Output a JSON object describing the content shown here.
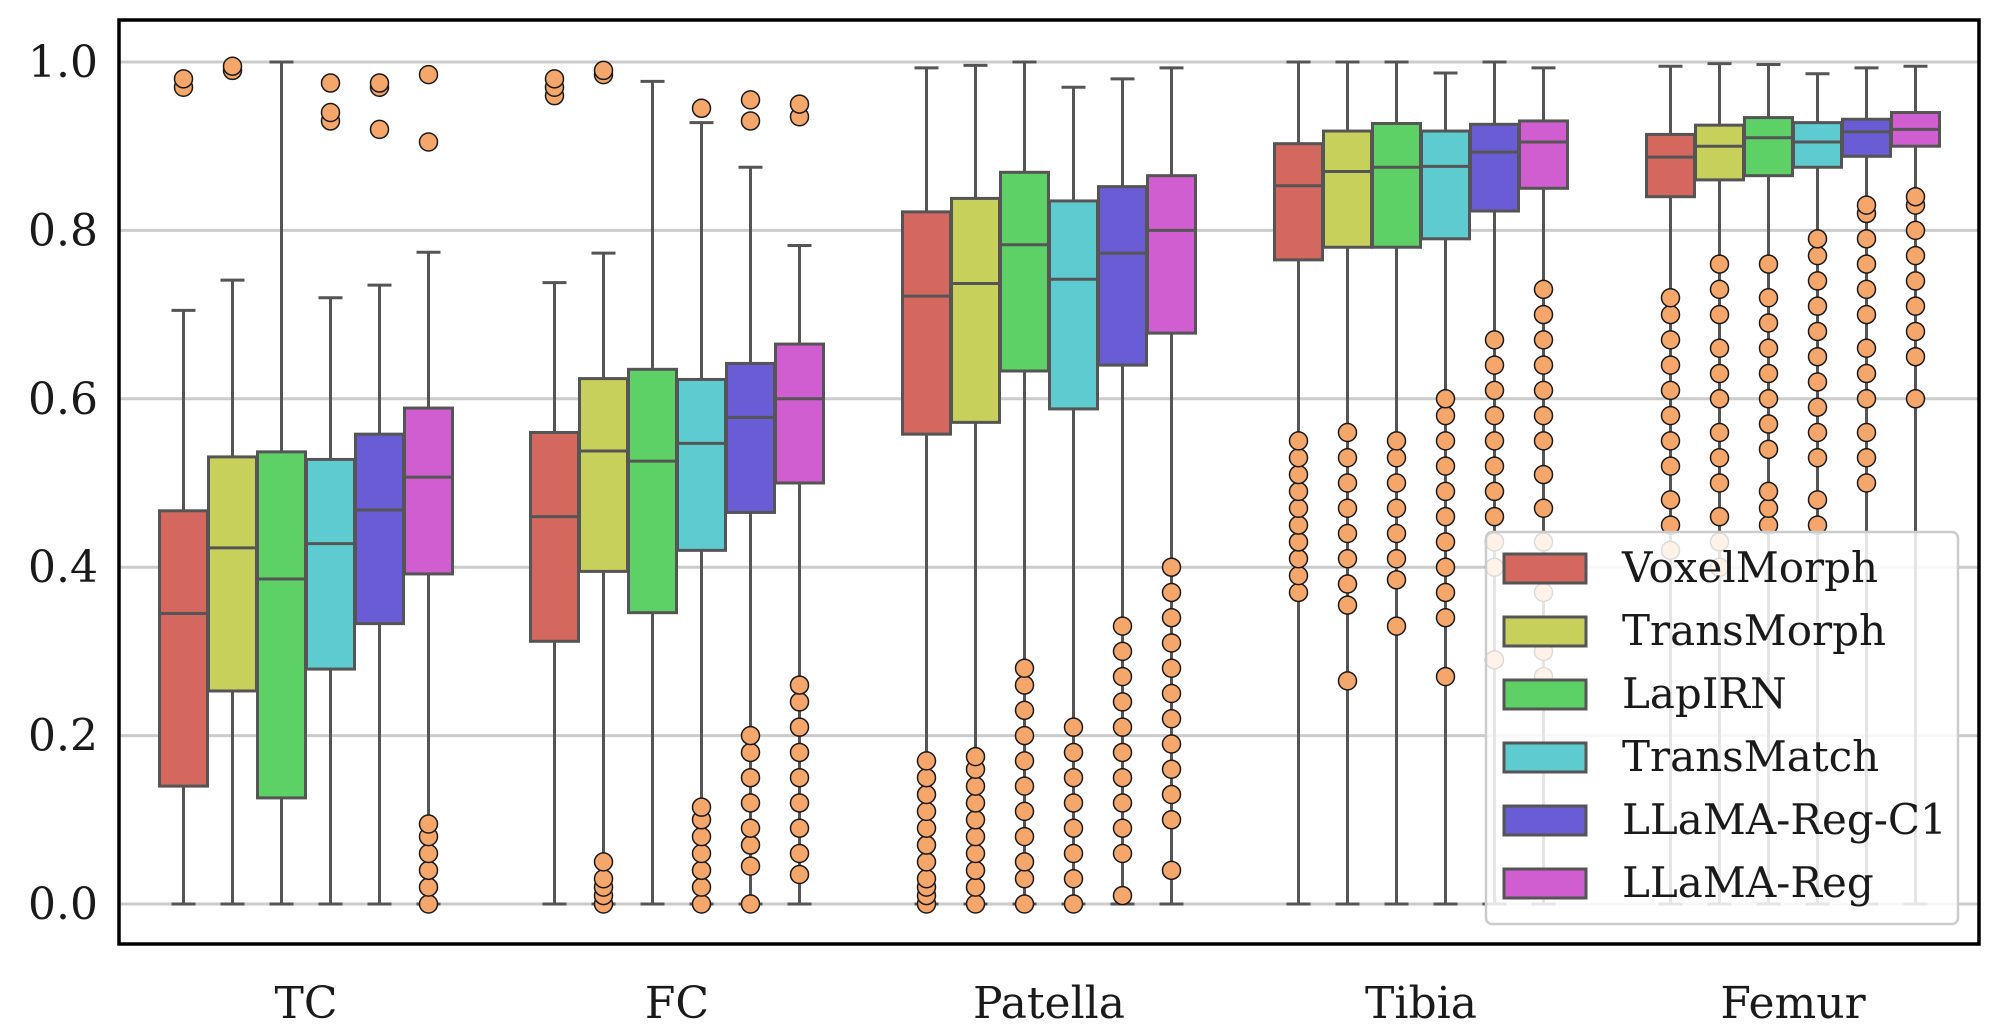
{
  "chart_data": {
    "type": "boxplot",
    "title": "",
    "xlabel": "",
    "ylabel": "",
    "ylim": [
      -0.05,
      1.05
    ],
    "yticks": [
      "0.0",
      "0.2",
      "0.4",
      "0.6",
      "0.8",
      "1.0"
    ],
    "ytick_values": [
      0.0,
      0.2,
      0.4,
      0.6,
      0.8,
      1.0
    ],
    "grid": true,
    "legend_placement": "bottom-right",
    "categories": [
      "TC",
      "FC",
      "Patella",
      "Tibia",
      "Femur"
    ],
    "series": [
      {
        "name": "VoxelMorph",
        "color": "#d4675e",
        "boxes": [
          {
            "whislo": 0.0,
            "q1": 0.14,
            "med": 0.345,
            "q3": 0.467,
            "whishi": 0.705,
            "fliers": [
              0.97,
              0.98
            ]
          },
          {
            "whislo": 0.0,
            "q1": 0.312,
            "med": 0.46,
            "q3": 0.56,
            "whishi": 0.738,
            "fliers": [
              0.96,
              0.97,
              0.98
            ]
          },
          {
            "whislo": 0.0,
            "q1": 0.558,
            "med": 0.722,
            "q3": 0.822,
            "whishi": 0.993,
            "fliers": [
              0.0,
              0.01,
              0.02,
              0.03,
              0.05,
              0.07,
              0.09,
              0.11,
              0.13,
              0.15,
              0.17
            ]
          },
          {
            "whislo": 0.0,
            "q1": 0.765,
            "med": 0.853,
            "q3": 0.903,
            "whishi": 1.0,
            "fliers": [
              0.37,
              0.39,
              0.41,
              0.43,
              0.45,
              0.47,
              0.49,
              0.51,
              0.53,
              0.55
            ]
          },
          {
            "whislo": 0.0,
            "q1": 0.84,
            "med": 0.887,
            "q3": 0.914,
            "whishi": 0.995,
            "fliers": [
              0.42,
              0.45,
              0.48,
              0.52,
              0.55,
              0.58,
              0.61,
              0.64,
              0.67,
              0.7,
              0.72
            ]
          }
        ]
      },
      {
        "name": "TransMorph",
        "color": "#c8d05c",
        "boxes": [
          {
            "whislo": 0.0,
            "q1": 0.253,
            "med": 0.423,
            "q3": 0.531,
            "whishi": 0.741,
            "fliers": [
              0.99,
              0.995
            ]
          },
          {
            "whislo": 0.0,
            "q1": 0.395,
            "med": 0.538,
            "q3": 0.624,
            "whishi": 0.773,
            "fliers": [
              0.0,
              0.01,
              0.02,
              0.03,
              0.05,
              0.985,
              0.99
            ]
          },
          {
            "whislo": 0.0,
            "q1": 0.572,
            "med": 0.737,
            "q3": 0.838,
            "whishi": 0.996,
            "fliers": [
              0.0,
              0.02,
              0.04,
              0.06,
              0.08,
              0.1,
              0.12,
              0.14,
              0.16,
              0.175
            ]
          },
          {
            "whislo": 0.0,
            "q1": 0.78,
            "med": 0.87,
            "q3": 0.918,
            "whishi": 1.0,
            "fliers": [
              0.265,
              0.355,
              0.38,
              0.41,
              0.44,
              0.47,
              0.5,
              0.53,
              0.56
            ]
          },
          {
            "whislo": 0.0,
            "q1": 0.86,
            "med": 0.9,
            "q3": 0.925,
            "whishi": 0.998,
            "fliers": [
              0.4,
              0.43,
              0.46,
              0.5,
              0.53,
              0.56,
              0.6,
              0.63,
              0.66,
              0.7,
              0.73,
              0.76
            ]
          }
        ]
      },
      {
        "name": "LapIRN",
        "color": "#5dd166",
        "boxes": [
          {
            "whislo": 0.0,
            "q1": 0.126,
            "med": 0.386,
            "q3": 0.537,
            "whishi": 1.0,
            "fliers": []
          },
          {
            "whislo": 0.0,
            "q1": 0.346,
            "med": 0.526,
            "q3": 0.635,
            "whishi": 0.977,
            "fliers": []
          },
          {
            "whislo": 0.0,
            "q1": 0.633,
            "med": 0.783,
            "q3": 0.869,
            "whishi": 1.0,
            "fliers": [
              0.0,
              0.03,
              0.05,
              0.08,
              0.11,
              0.14,
              0.17,
              0.2,
              0.23,
              0.26,
              0.28
            ]
          },
          {
            "whislo": 0.0,
            "q1": 0.78,
            "med": 0.875,
            "q3": 0.927,
            "whishi": 1.0,
            "fliers": [
              0.33,
              0.385,
              0.41,
              0.44,
              0.47,
              0.5,
              0.53,
              0.55
            ]
          },
          {
            "whislo": 0.0,
            "q1": 0.865,
            "med": 0.91,
            "q3": 0.934,
            "whishi": 0.997,
            "fliers": [
              0.45,
              0.47,
              0.49,
              0.54,
              0.57,
              0.6,
              0.63,
              0.66,
              0.69,
              0.72,
              0.76
            ]
          }
        ]
      },
      {
        "name": "TransMatch",
        "color": "#5ecbd1",
        "boxes": [
          {
            "whislo": 0.0,
            "q1": 0.279,
            "med": 0.428,
            "q3": 0.528,
            "whishi": 0.72,
            "fliers": [
              0.93,
              0.94,
              0.975
            ]
          },
          {
            "whislo": 0.0,
            "q1": 0.42,
            "med": 0.547,
            "q3": 0.623,
            "whishi": 0.928,
            "fliers": [
              0.0,
              0.02,
              0.04,
              0.06,
              0.08,
              0.1,
              0.115,
              0.945
            ]
          },
          {
            "whislo": 0.0,
            "q1": 0.588,
            "med": 0.742,
            "q3": 0.835,
            "whishi": 0.97,
            "fliers": [
              0.0,
              0.03,
              0.06,
              0.09,
              0.12,
              0.15,
              0.18,
              0.21
            ]
          },
          {
            "whislo": 0.0,
            "q1": 0.79,
            "med": 0.876,
            "q3": 0.918,
            "whishi": 0.987,
            "fliers": [
              0.27,
              0.34,
              0.37,
              0.4,
              0.43,
              0.46,
              0.49,
              0.52,
              0.55,
              0.58,
              0.6
            ]
          },
          {
            "whislo": 0.0,
            "q1": 0.875,
            "med": 0.905,
            "q3": 0.928,
            "whishi": 0.986,
            "fliers": [
              0.45,
              0.48,
              0.53,
              0.56,
              0.59,
              0.62,
              0.65,
              0.68,
              0.71,
              0.74,
              0.77,
              0.79
            ]
          }
        ]
      },
      {
        "name": "LLaMA-Reg-C1",
        "color": "#6a5cd4",
        "boxes": [
          {
            "whislo": 0.0,
            "q1": 0.333,
            "med": 0.468,
            "q3": 0.558,
            "whishi": 0.735,
            "fliers": [
              0.92,
              0.97,
              0.975
            ]
          },
          {
            "whislo": 0.0,
            "q1": 0.465,
            "med": 0.578,
            "q3": 0.642,
            "whishi": 0.875,
            "fliers": [
              0.0,
              0.045,
              0.07,
              0.09,
              0.12,
              0.15,
              0.18,
              0.2,
              0.93,
              0.955
            ]
          },
          {
            "whislo": 0.0,
            "q1": 0.64,
            "med": 0.773,
            "q3": 0.852,
            "whishi": 0.98,
            "fliers": [
              0.01,
              0.06,
              0.09,
              0.12,
              0.15,
              0.18,
              0.21,
              0.24,
              0.27,
              0.3,
              0.33
            ]
          },
          {
            "whislo": 0.0,
            "q1": 0.823,
            "med": 0.893,
            "q3": 0.926,
            "whishi": 1.0,
            "fliers": [
              0.29,
              0.4,
              0.43,
              0.46,
              0.49,
              0.52,
              0.55,
              0.58,
              0.61,
              0.64,
              0.67
            ]
          },
          {
            "whislo": 0.0,
            "q1": 0.888,
            "med": 0.917,
            "q3": 0.932,
            "whishi": 0.993,
            "fliers": [
              0.5,
              0.53,
              0.56,
              0.6,
              0.63,
              0.66,
              0.7,
              0.73,
              0.76,
              0.79,
              0.82,
              0.83
            ]
          }
        ]
      },
      {
        "name": "LLaMA-Reg",
        "color": "#d15ed0",
        "boxes": [
          {
            "whislo": 0.0,
            "q1": 0.392,
            "med": 0.507,
            "q3": 0.589,
            "whishi": 0.774,
            "fliers": [
              0.0,
              0.02,
              0.04,
              0.06,
              0.08,
              0.095,
              0.905,
              0.985
            ]
          },
          {
            "whislo": 0.0,
            "q1": 0.5,
            "med": 0.6,
            "q3": 0.665,
            "whishi": 0.782,
            "fliers": [
              0.035,
              0.06,
              0.09,
              0.12,
              0.15,
              0.18,
              0.21,
              0.24,
              0.26,
              0.935,
              0.95
            ]
          },
          {
            "whislo": 0.0,
            "q1": 0.678,
            "med": 0.8,
            "q3": 0.865,
            "whishi": 0.993,
            "fliers": [
              0.04,
              0.1,
              0.13,
              0.16,
              0.19,
              0.22,
              0.25,
              0.28,
              0.31,
              0.34,
              0.37,
              0.4
            ]
          },
          {
            "whislo": 0.0,
            "q1": 0.85,
            "med": 0.905,
            "q3": 0.93,
            "whishi": 0.993,
            "fliers": [
              0.27,
              0.3,
              0.37,
              0.43,
              0.47,
              0.51,
              0.55,
              0.58,
              0.61,
              0.64,
              0.67,
              0.7,
              0.73
            ]
          },
          {
            "whislo": 0.0,
            "q1": 0.9,
            "med": 0.92,
            "q3": 0.94,
            "whishi": 0.995,
            "fliers": [
              0.6,
              0.65,
              0.68,
              0.71,
              0.74,
              0.77,
              0.8,
              0.83,
              0.84
            ]
          }
        ]
      }
    ],
    "flier_color": "#f4a66b"
  }
}
